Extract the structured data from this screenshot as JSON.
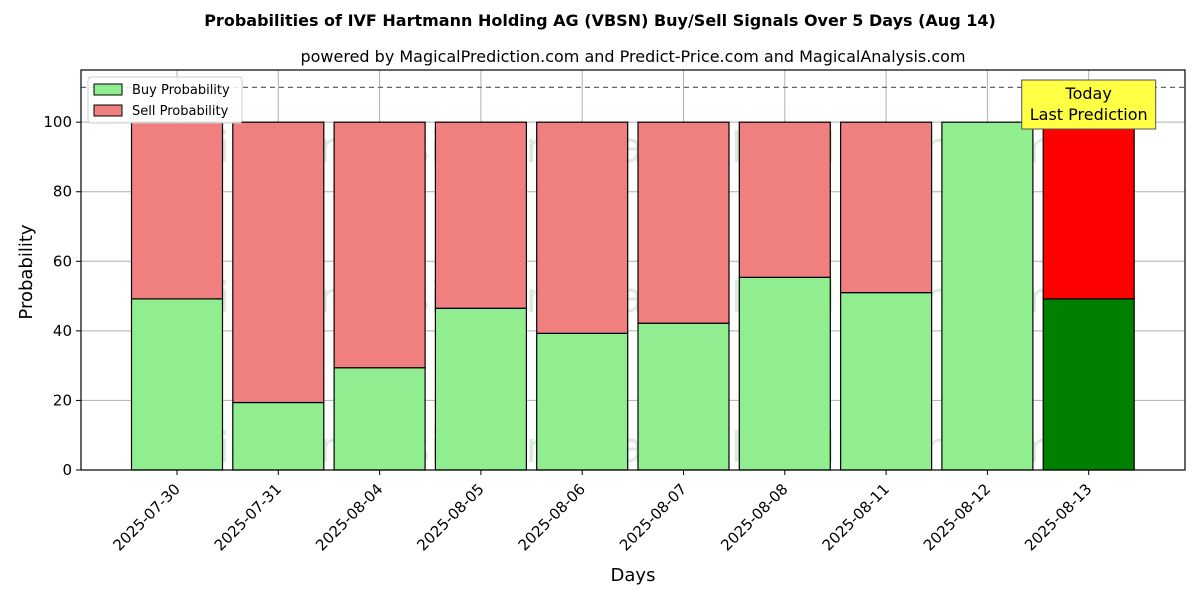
{
  "chart_data": {
    "type": "bar",
    "stacked": true,
    "title": "Probabilities of IVF Hartmann Holding AG (VBSN) Buy/Sell Signals Over 5 Days (Aug 14)",
    "subtitle": "powered by MagicalPrediction.com and Predict-Price.com and MagicalAnalysis.com",
    "xlabel": "Days",
    "ylabel": "Probability",
    "ylim": [
      0,
      115
    ],
    "yticks": [
      0,
      20,
      40,
      60,
      80,
      100
    ],
    "reference_line": 110,
    "grid": true,
    "legend_position": "top-left",
    "categories": [
      "2025-07-30",
      "2025-07-31",
      "2025-08-04",
      "2025-08-05",
      "2025-08-06",
      "2025-08-07",
      "2025-08-08",
      "2025-08-11",
      "2025-08-12",
      "2025-08-13"
    ],
    "series": [
      {
        "name": "Buy Probability",
        "color": "#90ee90",
        "highlight_color": "#008000",
        "values": [
          49.2,
          19.4,
          29.4,
          46.5,
          39.3,
          42.2,
          55.4,
          51.0,
          100.0,
          49.2
        ]
      },
      {
        "name": "Sell Probability",
        "color": "#f08080",
        "highlight_color": "#ff0000",
        "values": [
          50.8,
          80.6,
          70.6,
          53.5,
          60.7,
          57.8,
          44.6,
          49.0,
          0.0,
          50.8
        ]
      }
    ],
    "highlight_index": 9,
    "annotation": {
      "lines": [
        "Today",
        "Last Prediction"
      ],
      "color": "#ffff44"
    },
    "watermarks": [
      "MagicalAnalysis.com",
      "MagicalPrediction.com"
    ]
  }
}
